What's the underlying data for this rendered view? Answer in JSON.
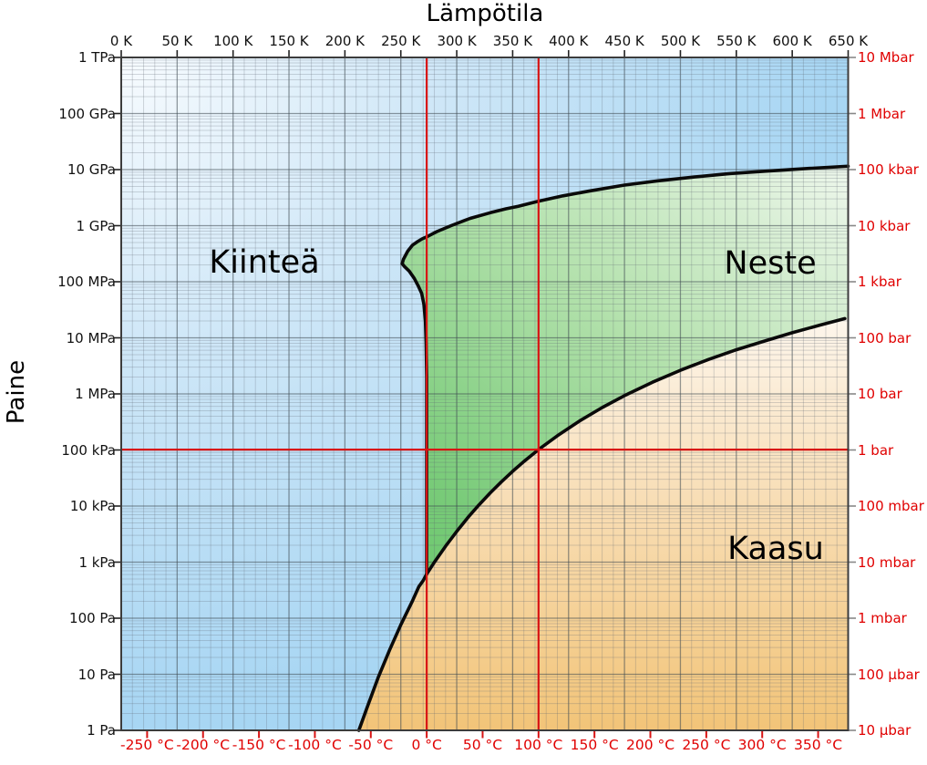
{
  "chart_data": {
    "type": "area",
    "subtype": "phase-diagram-water",
    "title_top": "Lämpötila",
    "ylabel_left": "Paine",
    "regions": [
      {
        "id": "solid",
        "label": "Kiinteä"
      },
      {
        "id": "liquid",
        "label": "Neste"
      },
      {
        "id": "gas",
        "label": "Kaasu"
      }
    ],
    "x_axis_top": {
      "unit": "K",
      "min": 0,
      "max": 650,
      "major_step_K": 50,
      "minor_step_K": 10,
      "tick_values_K": [
        0,
        50,
        100,
        150,
        200,
        250,
        300,
        350,
        400,
        450,
        500,
        550,
        600,
        650
      ],
      "tick_labels": [
        "0 K",
        "50 K",
        "100 K",
        "150 K",
        "200 K",
        "250 K",
        "300 K",
        "350 K",
        "400 K",
        "450 K",
        "500 K",
        "550 K",
        "600 K",
        "650 K"
      ]
    },
    "x_axis_bottom": {
      "unit": "°C",
      "tick_values_C": [
        -250,
        -200,
        -150,
        -100,
        -50,
        0,
        50,
        100,
        150,
        200,
        250,
        300,
        350
      ],
      "tick_labels": [
        "-250 °C",
        "-200 °C",
        "-150 °C",
        "-100 °C",
        "-50 °C",
        "0 °C",
        "50 °C",
        "100 °C",
        "150 °C",
        "200 °C",
        "250 °C",
        "300 °C",
        "350 °C"
      ]
    },
    "y_axis_left": {
      "scale": "log",
      "decades": 12,
      "top_Pa": 1000000000000.0,
      "bottom_Pa": 1,
      "tick_labels": [
        "1 TPa",
        "100 GPa",
        "10 GPa",
        "1 GPa",
        "100 MPa",
        "10 MPa",
        "1 MPa",
        "100 kPa",
        "10 kPa",
        "1 kPa",
        "100 Pa",
        "10 Pa",
        "1 Pa"
      ]
    },
    "y_axis_right": {
      "tick_labels": [
        "10 Mbar",
        "1 Mbar",
        "100 kbar",
        "10 kbar",
        "1 kbar",
        "100 bar",
        "10 bar",
        "1 bar",
        "100 mbar",
        "10 mbar",
        "1 mbar",
        "100 µbar",
        "10 µbar"
      ]
    },
    "boundaries": {
      "sublimation_K_Pa": [
        [
          212.5,
          1
        ],
        [
          220,
          2.6
        ],
        [
          230,
          9.0
        ],
        [
          240,
          27.3
        ],
        [
          250,
          76.0
        ],
        [
          260,
          195.8
        ],
        [
          266,
          363
        ],
        [
          270,
          470
        ],
        [
          273.16,
          611.7
        ]
      ],
      "vaporization_K_Pa": [
        [
          273.16,
          611.7
        ],
        [
          280,
          991
        ],
        [
          290,
          1919
        ],
        [
          300,
          3537
        ],
        [
          310,
          6231
        ],
        [
          320,
          10546
        ],
        [
          330,
          17213
        ],
        [
          340,
          27188
        ],
        [
          350,
          41682
        ],
        [
          360,
          62194
        ],
        [
          373.15,
          101325
        ],
        [
          390,
          179639
        ],
        [
          410,
          330000
        ],
        [
          430,
          570000
        ],
        [
          450,
          932000
        ],
        [
          475,
          1617000
        ],
        [
          500,
          2639000
        ],
        [
          525,
          4106000
        ],
        [
          550,
          6112000
        ],
        [
          575,
          8740000
        ],
        [
          600,
          12350000
        ],
        [
          625,
          16900000
        ],
        [
          647.1,
          22064000
        ]
      ],
      "melting_K_Pa": [
        [
          273.16,
          611.7
        ],
        [
          273.15,
          100000
        ],
        [
          273.1,
          2000000
        ],
        [
          272.6,
          8000000
        ],
        [
          272.0,
          20000000
        ],
        [
          270.6,
          40000000
        ],
        [
          268.6,
          62000000
        ],
        [
          265.5,
          85000000
        ],
        [
          262.0,
          115000000
        ],
        [
          257.5,
          155000000
        ],
        [
          253.5,
          185000000
        ],
        [
          251.2,
          209900000
        ],
        [
          252.3,
          251000000
        ],
        [
          256.2,
          350300000
        ],
        [
          260.5,
          450000000
        ],
        [
          265.0,
          520000000
        ],
        [
          269.0,
          580000000
        ],
        [
          273.3,
          632400000
        ],
        [
          282,
          780000000
        ],
        [
          295,
          1000000000
        ],
        [
          312,
          1350000000
        ],
        [
          330,
          1700000000
        ],
        [
          344,
          2000000000
        ],
        [
          355,
          2216000000
        ],
        [
          372,
          2700000000
        ],
        [
          395,
          3400000000
        ],
        [
          420,
          4200000000
        ],
        [
          450,
          5300000000
        ],
        [
          480,
          6300000000
        ],
        [
          510,
          7300000000
        ],
        [
          545,
          8500000000
        ],
        [
          580,
          9500000000
        ],
        [
          615,
          10500000000
        ],
        [
          650,
          11500000000
        ]
      ]
    },
    "points": {
      "triple_point_K_Pa": [
        273.16,
        611.7
      ],
      "critical_point_K_Pa": [
        647.1,
        22064000
      ]
    },
    "reference_lines": {
      "vertical_K": [
        273.15,
        373.15
      ],
      "horizontal_Pa": 101325
    },
    "colors": {
      "reference_line": "#d81414",
      "axis_red_text": "#e00000",
      "curve": "#0a0a0a",
      "solid_fill_from": "#f7fbfe",
      "solid_fill_to": "#9fd1f2",
      "liquid_fill_from": "#eef7ec",
      "liquid_fill_to": "#6cc86e",
      "gas_fill_from": "#fdf6ec",
      "gas_fill_to": "#f2c478",
      "grid_minor": "#5a646e",
      "grid_major": "#3e4850",
      "frame": "#3c3c3c"
    }
  }
}
